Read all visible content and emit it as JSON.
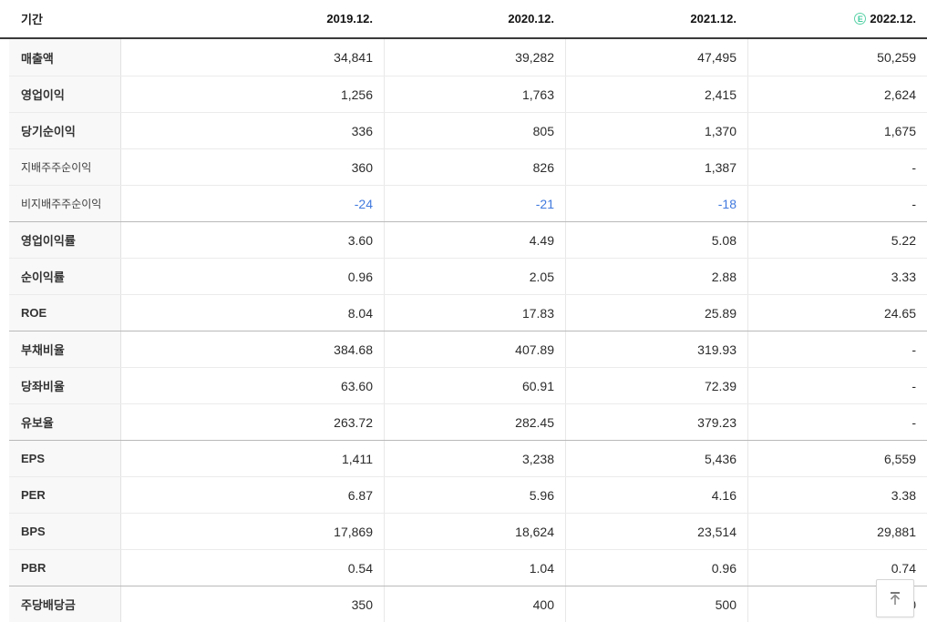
{
  "header": {
    "period_label": "기간",
    "columns": [
      "2019.12.",
      "2020.12.",
      "2021.12.",
      "2022.12."
    ],
    "estimate_badge": "E"
  },
  "table": {
    "rows": [
      {
        "label": "매출액",
        "values": [
          "34,841",
          "39,282",
          "47,495",
          "50,259"
        ]
      },
      {
        "label": "영업이익",
        "values": [
          "1,256",
          "1,763",
          "2,415",
          "2,624"
        ]
      },
      {
        "label": "당기순이익",
        "values": [
          "336",
          "805",
          "1,370",
          "1,675"
        ]
      },
      {
        "label": "지배주주순이익",
        "sub": true,
        "values": [
          "360",
          "826",
          "1,387",
          "-"
        ]
      },
      {
        "label": "비지배주주순이익",
        "sub": true,
        "values": [
          "-24",
          "-21",
          "-18",
          "-"
        ]
      },
      {
        "label": "영업이익률",
        "group_start": true,
        "values": [
          "3.60",
          "4.49",
          "5.08",
          "5.22"
        ]
      },
      {
        "label": "순이익률",
        "values": [
          "0.96",
          "2.05",
          "2.88",
          "3.33"
        ]
      },
      {
        "label": "ROE",
        "values": [
          "8.04",
          "17.83",
          "25.89",
          "24.65"
        ]
      },
      {
        "label": "부채비율",
        "group_start": true,
        "values": [
          "384.68",
          "407.89",
          "319.93",
          "-"
        ]
      },
      {
        "label": "당좌비율",
        "values": [
          "63.60",
          "60.91",
          "72.39",
          "-"
        ]
      },
      {
        "label": "유보율",
        "values": [
          "263.72",
          "282.45",
          "379.23",
          "-"
        ]
      },
      {
        "label": "EPS",
        "group_start": true,
        "values": [
          "1,411",
          "3,238",
          "5,436",
          "6,559"
        ]
      },
      {
        "label": "PER",
        "values": [
          "6.87",
          "5.96",
          "4.16",
          "3.38"
        ]
      },
      {
        "label": "BPS",
        "values": [
          "17,869",
          "18,624",
          "23,514",
          "29,881"
        ]
      },
      {
        "label": "PBR",
        "values": [
          "0.54",
          "1.04",
          "0.96",
          "0.74"
        ]
      },
      {
        "label": "주당배당금",
        "group_start": true,
        "values": [
          "350",
          "400",
          "500",
          "0"
        ]
      }
    ]
  },
  "colors": {
    "negative_value_blue": "#4079de",
    "estimate_badge_green": "#4ecfa4",
    "header_rule": "#3a3a3a",
    "row_line": "#ebebeb",
    "group_line": "#b9b9b9",
    "label_cell_bg": "#f8f8f8"
  },
  "scroll_top_button": {
    "icon": "scroll-to-top-icon"
  }
}
